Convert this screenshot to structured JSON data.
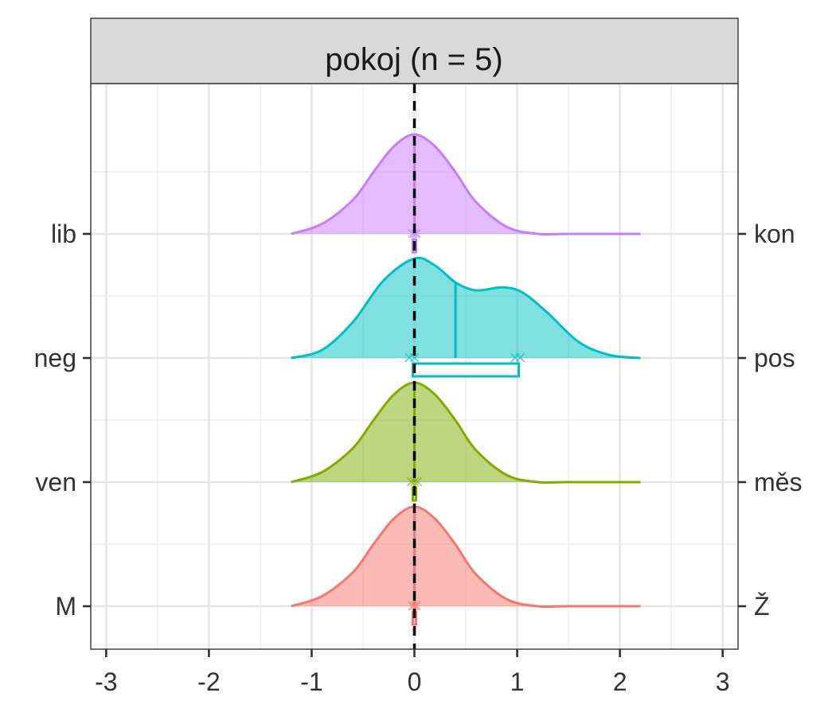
{
  "chart_data": {
    "type": "ridgeline",
    "panel_title": "pokoj (n = 5)",
    "xlim": [
      -3.15,
      3.15
    ],
    "x_ticks": [
      -3,
      -2,
      -1,
      0,
      1,
      2,
      3
    ],
    "x_tick_labels": [
      "-3",
      "-2",
      "-1",
      "0",
      "1",
      "2",
      "3"
    ],
    "grid": true,
    "reference_line_x": 0,
    "rows": [
      {
        "left_label": "M",
        "right_label": "Ž",
        "color": "#F8766D",
        "density": {
          "x": [
            -1.2,
            -0.9,
            -0.6,
            -0.4,
            -0.2,
            0,
            0.2,
            0.4,
            0.6,
            0.9,
            1.2,
            1.5,
            2.2
          ],
          "y": [
            0.0,
            0.1,
            0.34,
            0.62,
            0.88,
            1.0,
            0.88,
            0.62,
            0.32,
            0.07,
            0.0,
            0.0,
            0.0
          ]
        },
        "median": 0,
        "box": [
          0,
          0
        ],
        "points": [
          -0.02,
          0,
          0.02
        ]
      },
      {
        "left_label": "ven",
        "right_label": "měs",
        "color": "#7CAE00",
        "density": {
          "x": [
            -1.2,
            -0.9,
            -0.6,
            -0.4,
            -0.2,
            0,
            0.2,
            0.4,
            0.6,
            0.9,
            1.2,
            1.5,
            2.2
          ],
          "y": [
            0.0,
            0.1,
            0.34,
            0.62,
            0.88,
            1.0,
            0.88,
            0.62,
            0.32,
            0.07,
            0.0,
            0.0,
            0.0
          ]
        },
        "median": 0,
        "box": [
          0,
          0
        ],
        "points": [
          -0.03,
          0,
          0.03
        ]
      },
      {
        "left_label": "neg",
        "right_label": "pos",
        "color": "#00BFC4",
        "density": {
          "x": [
            -1.2,
            -0.9,
            -0.6,
            -0.3,
            0,
            0.2,
            0.4,
            0.6,
            0.85,
            1.05,
            1.3,
            1.6,
            1.9,
            2.2
          ],
          "y": [
            0.0,
            0.08,
            0.36,
            0.78,
            1.0,
            0.93,
            0.76,
            0.68,
            0.71,
            0.66,
            0.45,
            0.16,
            0.03,
            0.0
          ]
        },
        "median": 0.4,
        "box": [
          0,
          1
        ],
        "points": [
          -0.05,
          0,
          0.98,
          1.03
        ]
      },
      {
        "left_label": "lib",
        "right_label": "kon",
        "color": "#C77CFF",
        "density": {
          "x": [
            -1.2,
            -0.9,
            -0.6,
            -0.4,
            -0.2,
            0,
            0.2,
            0.4,
            0.6,
            0.9,
            1.2,
            1.5,
            2.2
          ],
          "y": [
            0.0,
            0.1,
            0.34,
            0.62,
            0.88,
            1.0,
            0.88,
            0.62,
            0.32,
            0.07,
            0.0,
            0.0,
            0.0
          ]
        },
        "median": 0,
        "box": [
          0,
          0
        ],
        "points": [
          -0.02,
          0,
          0.02
        ]
      }
    ]
  }
}
